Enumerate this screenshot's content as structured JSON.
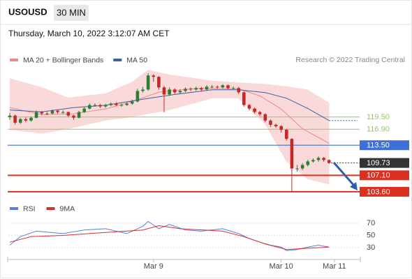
{
  "header": {
    "symbol": "USOUSD",
    "interval": "30 MIN",
    "timestamp": "Thursday, March 10, 2022 3:12:07 AM CET",
    "credit": "Research © 2022 Trading Central"
  },
  "chart_data": [
    {
      "type": "candlestick",
      "xlim": [
        0,
        66
      ],
      "ylim": [
        102.55,
        130.3
      ],
      "up_color": "#2e7d32",
      "down_color": "#c62828",
      "open": [
        119.5,
        119.8,
        118.3,
        119.05,
        118.75,
        119.35,
        120.55,
        120.25,
        120.25,
        120.85,
        120.55,
        120.55,
        119.8,
        119.35,
        120.55,
        121.3,
        122.05,
        122.05,
        121.75,
        122.05,
        122.35,
        122.05,
        122.05,
        122.35,
        122.8,
        125.05,
        125.35,
        128.35,
        128.05,
        125.8,
        124.3,
        125.35,
        124.75,
        125.05,
        125.5,
        125.35,
        125.65,
        125.35,
        125.95,
        125.95,
        125.8,
        126.25,
        125.65,
        125.65,
        124.75,
        122.05,
        121.3,
        120.55,
        120.1,
        118.75,
        117.85,
        117.55,
        116.8,
        114.85,
        108.55,
        108.55,
        109.3,
        110.05,
        110.35,
        110.8,
        110.35
      ],
      "high": [
        120.4,
        120.0,
        119.3,
        119.4,
        119.6,
        120.9,
        120.8,
        120.6,
        121.1,
        121.0,
        120.9,
        120.7,
        120.0,
        120.8,
        121.6,
        122.4,
        122.4,
        122.3,
        122.3,
        122.6,
        122.6,
        122.4,
        122.6,
        123.2,
        125.5,
        125.9,
        128.8,
        128.6,
        128.2,
        126.1,
        125.8,
        125.6,
        125.4,
        125.8,
        125.8,
        126.0,
        125.9,
        126.3,
        126.3,
        126.2,
        126.5,
        126.4,
        126.0,
        125.9,
        125.0,
        122.3,
        121.5,
        120.8,
        120.3,
        119.0,
        118.1,
        117.8,
        117.0,
        115.0,
        109.3,
        109.7,
        110.4,
        110.7,
        111.2,
        111.0,
        110.5
      ],
      "low": [
        118.9,
        117.9,
        118.0,
        118.4,
        118.5,
        119.2,
        119.9,
        119.9,
        120.0,
        120.2,
        120.2,
        119.5,
        118.9,
        119.2,
        120.4,
        121.1,
        121.7,
        121.4,
        121.5,
        121.8,
        121.8,
        121.7,
        121.9,
        122.1,
        122.6,
        124.7,
        125.1,
        127.0,
        125.3,
        120.5,
        124.0,
        124.4,
        124.5,
        124.8,
        125.0,
        125.1,
        125.0,
        125.2,
        125.6,
        125.5,
        125.6,
        125.4,
        125.3,
        124.4,
        121.7,
        120.9,
        120.2,
        119.7,
        118.4,
        117.4,
        117.2,
        116.2,
        114.5,
        103.75,
        107.9,
        108.2,
        109.0,
        109.8,
        110.0,
        110.0,
        109.5
      ],
      "close": [
        119.8,
        118.3,
        119.05,
        118.75,
        119.35,
        120.55,
        120.25,
        120.25,
        120.85,
        120.55,
        120.55,
        119.8,
        119.35,
        120.55,
        121.3,
        122.05,
        122.05,
        121.75,
        122.05,
        122.35,
        122.05,
        122.05,
        122.35,
        122.8,
        125.05,
        125.35,
        128.35,
        128.05,
        125.8,
        124.3,
        125.35,
        124.75,
        125.05,
        125.5,
        125.35,
        125.65,
        125.35,
        125.95,
        125.95,
        125.8,
        126.25,
        125.65,
        125.65,
        124.75,
        122.05,
        121.3,
        120.55,
        120.1,
        118.75,
        117.85,
        117.55,
        116.8,
        114.85,
        108.55,
        108.55,
        109.3,
        110.05,
        110.35,
        110.8,
        110.35,
        109.73
      ],
      "bands": {
        "color": "#f9d9d9",
        "x": [
          0,
          6,
          11,
          18,
          23,
          26,
          30,
          38,
          43,
          48,
          52,
          56,
          60
        ],
        "upper": [
          127.7,
          125.8,
          123.6,
          124.5,
          127.0,
          129.5,
          128.5,
          127.2,
          126.8,
          126.5,
          126.0,
          125.3,
          122.5
        ],
        "lower": [
          116.8,
          116.0,
          117.0,
          118.8,
          119.5,
          120.2,
          121.0,
          123.5,
          123.5,
          118.0,
          110.0,
          106.3,
          105.2
        ]
      },
      "series": [
        {
          "name": "MA 20 + Bollinger Bands",
          "color": "#ee8a8a",
          "x": [
            0,
            6,
            12,
            18,
            23,
            28,
            35,
            43,
            47,
            51,
            55,
            60
          ],
          "values": [
            121.5,
            120.0,
            120.2,
            121.2,
            122.8,
            124.8,
            125.6,
            125.5,
            124.0,
            121.2,
            117.0,
            113.9
          ]
        },
        {
          "name": "MA 50",
          "color": "#3f5f9f",
          "x": [
            0,
            6,
            12,
            18,
            25,
            31,
            38,
            43,
            48,
            52,
            56,
            60
          ],
          "values": [
            121.0,
            120.6,
            121.5,
            122.0,
            123.3,
            124.3,
            125.3,
            125.3,
            124.7,
            123.5,
            121.3,
            118.75
          ]
        }
      ],
      "levels": [
        {
          "value": 119.5,
          "label": "119.50",
          "color": "#9bc46a",
          "label_background": null
        },
        {
          "value": 116.9,
          "label": "116.90",
          "color": "#9bc46a",
          "label_background": null
        },
        {
          "value": 113.5,
          "label": "113.50",
          "color": "#3d6fd6",
          "label_background": "#3d6fd6"
        },
        {
          "value": 107.1,
          "label": "107.10",
          "color": "#d9301f",
          "label_background": "#d9301f"
        },
        {
          "value": 103.6,
          "label": "103.60",
          "color": "#d9301f",
          "label_background": "#d9301f"
        }
      ],
      "last_price": {
        "value": 109.73,
        "label": "109.73",
        "label_background": "#333333"
      }
    },
    {
      "type": "line",
      "xlim": [
        0,
        66
      ],
      "ylim": [
        10.6,
        92.9
      ],
      "yticks": [
        70,
        50,
        30
      ],
      "xticks": [
        {
          "value": 27,
          "label": "Mar 9"
        },
        {
          "value": 51,
          "label": "Mar 10"
        },
        {
          "value": 61,
          "label": "Mar 11"
        }
      ],
      "series": [
        {
          "name": "RSI",
          "color": "#5b7fd6",
          "x": [
            0,
            2,
            5,
            10,
            14,
            18,
            22,
            25,
            26,
            28,
            30,
            33,
            36,
            40,
            43,
            45,
            47,
            49,
            51,
            52,
            54,
            56,
            58,
            60
          ],
          "values": [
            34,
            48,
            57,
            53,
            59,
            61,
            53,
            65,
            73,
            61,
            68,
            59,
            57,
            61,
            53,
            45,
            39,
            34,
            31,
            25,
            27,
            31,
            34,
            31
          ]
        },
        {
          "name": "9MA",
          "color": "#d32f2f",
          "x": [
            0,
            4,
            10,
            18,
            25,
            28,
            32,
            40,
            44,
            48,
            52,
            56,
            60
          ],
          "values": [
            39,
            48,
            50,
            55,
            59,
            66,
            61,
            57,
            48,
            36,
            27,
            29,
            31
          ]
        }
      ]
    }
  ]
}
